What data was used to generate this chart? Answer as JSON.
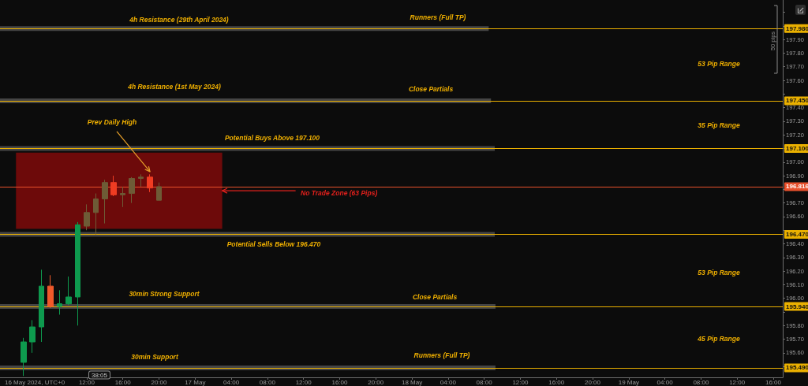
{
  "chart_data": {
    "type": "candlestick",
    "x": [
      "2024-05-16T05:00",
      "2024-05-16T06:00",
      "2024-05-16T07:00",
      "2024-05-16T08:00",
      "2024-05-16T09:00",
      "2024-05-16T10:00",
      "2024-05-16T11:00",
      "2024-05-16T12:00",
      "2024-05-16T13:00",
      "2024-05-16T14:00",
      "2024-05-16T15:00",
      "2024-05-16T16:00",
      "2024-05-16T17:00",
      "2024-05-16T18:00",
      "2024-05-16T19:00",
      "2024-05-16T20:00"
    ],
    "ohlc": [
      [
        195.53,
        195.71,
        195.43,
        195.68
      ],
      [
        195.68,
        195.84,
        195.6,
        195.79
      ],
      [
        195.79,
        196.21,
        195.68,
        196.09
      ],
      [
        196.09,
        196.17,
        195.93,
        195.94
      ],
      [
        195.94,
        196.06,
        195.88,
        195.96
      ],
      [
        195.96,
        196.16,
        195.95,
        196.01
      ],
      [
        196.01,
        196.56,
        195.8,
        196.54
      ],
      [
        196.53,
        196.69,
        196.5,
        196.63
      ],
      [
        196.63,
        196.77,
        196.47,
        196.73
      ],
      [
        196.73,
        196.87,
        196.55,
        196.85
      ],
      [
        196.85,
        196.9,
        196.75,
        196.76
      ],
      [
        196.76,
        196.82,
        196.67,
        196.77
      ],
      [
        196.77,
        196.89,
        196.7,
        196.88
      ],
      [
        196.88,
        196.91,
        196.82,
        196.89
      ],
      [
        196.89,
        196.91,
        196.78,
        196.81
      ],
      [
        196.72,
        196.85,
        196.72,
        196.82
      ]
    ],
    "colors": [
      "#0e9a4e",
      "#0e9a4e",
      "#0e9a4e",
      "#f0592a",
      "#0e9a4e",
      "#0e9a4e",
      "#0e9a4e",
      "#6e5b36",
      "#6e5b36",
      "#6e5b36",
      "#f03c22",
      "#6e5b36",
      "#6e5b36",
      "#6e5b36",
      "#f03c22",
      "#6e5b36"
    ],
    "xlim": [
      "2024-05-16T02:24",
      "2024-05-19T17:03"
    ],
    "xticks": [
      {
        "value": "2024-05-16T12:00",
        "label": "12:00"
      },
      {
        "value": "2024-05-16T16:00",
        "label": "16:00"
      },
      {
        "value": "2024-05-16T20:00",
        "label": "20:00"
      },
      {
        "value": "2024-05-17",
        "label": "17 May"
      },
      {
        "value": "2024-05-17T04:00",
        "label": "04:00"
      },
      {
        "value": "2024-05-17T08:00",
        "label": "08:00"
      },
      {
        "value": "2024-05-17T12:00",
        "label": "12:00"
      },
      {
        "value": "2024-05-17T16:00",
        "label": "16:00"
      },
      {
        "value": "2024-05-17T20:00",
        "label": "20:00"
      },
      {
        "value": "2024-05-18",
        "label": "18 May"
      },
      {
        "value": "2024-05-18T04:00",
        "label": "04:00"
      },
      {
        "value": "2024-05-18T08:00",
        "label": "08:00"
      },
      {
        "value": "2024-05-18T12:00",
        "label": "12:00"
      },
      {
        "value": "2024-05-18T16:00",
        "label": "16:00"
      },
      {
        "value": "2024-05-18T20:00",
        "label": "20:00"
      },
      {
        "value": "2024-05-19",
        "label": "19 May"
      },
      {
        "value": "2024-05-19T04:00",
        "label": "04:00"
      },
      {
        "value": "2024-05-19T08:00",
        "label": "08:00"
      },
      {
        "value": "2024-05-19T12:00",
        "label": "12:00"
      },
      {
        "value": "2024-05-19T16:00",
        "label": "16:00"
      }
    ],
    "ylim": [
      195.42,
      198.19
    ],
    "yticks": [
      {
        "value": 195.5,
        "label": null
      },
      {
        "value": 195.6,
        "label": "195.60"
      },
      {
        "value": 195.7,
        "label": "195.70"
      },
      {
        "value": 195.8,
        "label": "195.80"
      },
      {
        "value": 195.9,
        "label": null
      },
      {
        "value": 196,
        "label": "196.00"
      },
      {
        "value": 196.1,
        "label": "196.10"
      },
      {
        "value": 196.2,
        "label": "196.20"
      },
      {
        "value": 196.3,
        "label": "196.30"
      },
      {
        "value": 196.4,
        "label": "196.40"
      },
      {
        "value": 196.5,
        "label": null
      },
      {
        "value": 196.6,
        "label": "196.60"
      },
      {
        "value": 196.7,
        "label": "196.70"
      },
      {
        "value": 196.8,
        "label": null
      },
      {
        "value": 196.9,
        "label": "196.90"
      },
      {
        "value": 197,
        "label": "197.00"
      },
      {
        "value": 197.1,
        "label": null
      },
      {
        "value": 197.2,
        "label": "197.20"
      },
      {
        "value": 197.3,
        "label": "197.30"
      },
      {
        "value": 197.4,
        "label": "197.40"
      },
      {
        "value": 197.5,
        "label": null
      },
      {
        "value": 197.6,
        "label": "197.60"
      },
      {
        "value": 197.7,
        "label": "197.70"
      },
      {
        "value": 197.8,
        "label": "197.80"
      },
      {
        "value": 197.9,
        "label": "197.90"
      },
      {
        "value": 198,
        "label": null
      },
      {
        "value": 198.1,
        "label": null
      }
    ],
    "grid": false,
    "series": [
      {
        "type": "line",
        "x": [
          "2024-05-16T02:24",
          "2024-05-18T08:30"
        ],
        "values": [
          197.98,
          197.98
        ],
        "color": "#454545"
      },
      {
        "type": "line",
        "x": [
          "2024-05-16T02:24",
          "2024-05-18T08:45"
        ],
        "values": [
          197.45,
          197.45
        ],
        "color": "#454545"
      },
      {
        "type": "line",
        "x": [
          "2024-05-16T02:24",
          "2024-05-18T09:10"
        ],
        "values": [
          197.1,
          197.1
        ],
        "color": "#454545"
      },
      {
        "type": "line",
        "x": [
          "2024-05-16T02:24",
          "2024-05-18T09:10"
        ],
        "values": [
          196.47,
          196.47
        ],
        "color": "#454545"
      },
      {
        "type": "line",
        "x": [
          "2024-05-16T02:24",
          "2024-05-18T09:15"
        ],
        "values": [
          195.94,
          195.94
        ],
        "color": "#454545"
      },
      {
        "type": "line",
        "x": [
          "2024-05-16T02:24",
          "2024-05-18T09:15"
        ],
        "values": [
          195.49,
          195.49
        ],
        "color": "#454545"
      },
      {
        "type": "line",
        "x": [
          "2024-05-16T04:10",
          "2024-05-17T03:00"
        ],
        "values": [
          null,
          null
        ],
        "upper": [
          197.07,
          197.07
        ],
        "lower": [
          196.51,
          196.51
        ],
        "color": "#6d0a0a"
      }
    ],
    "ref_lines": [
      {
        "axis": "y",
        "value": 197.98,
        "label": "197.980",
        "color": "#eab000"
      },
      {
        "axis": "y",
        "value": 197.45,
        "label": "197.450",
        "color": "#eab000"
      },
      {
        "axis": "y",
        "value": 197.1,
        "label": "197.100",
        "color": "#eab000"
      },
      {
        "axis": "y",
        "value": 196.816,
        "label": "196.816",
        "color": "#e8502c"
      },
      {
        "axis": "y",
        "value": 196.47,
        "label": "196.470",
        "color": "#eab000"
      },
      {
        "axis": "y",
        "value": 195.94,
        "label": "195.940",
        "color": "#eab000"
      },
      {
        "axis": "y",
        "value": 195.49,
        "label": "195.490",
        "color": "#eab000"
      }
    ],
    "annotations": [
      "4h Resistance (29th April 2024)",
      "Runners (Full TP)",
      "4h Resistance (1st May 2024)",
      "Close Partials",
      {
        "text": "Prev Daily High",
        "x": "2024-05-16T19:00",
        "y": 196.93
      },
      "Potential Buys Above 197.100",
      {
        "text": "No Trade Zone (63 Pips)",
        "x": "2024-05-17T03:00",
        "y": 196.79
      },
      "Potential Sells Below 196.470",
      "30min Strong Support",
      "Close Partials",
      "30min Support",
      "Runners (Full TP)",
      "53 Pip Range",
      "35 Pip Range",
      "53 Pip Range",
      "45 Pip Range",
      "50 pips",
      "38:05",
      "16 May 2024, UTC+0"
    ]
  }
}
